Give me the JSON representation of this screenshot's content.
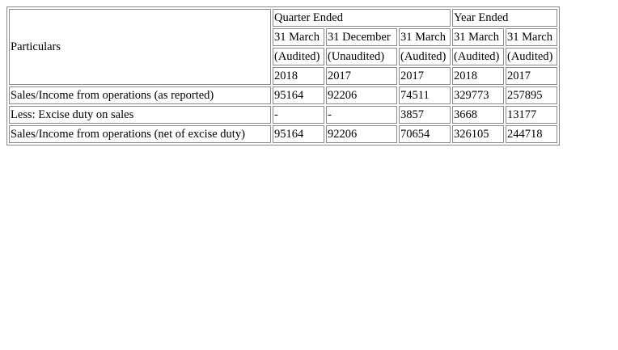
{
  "table": {
    "particulars_header": "Particulars",
    "group_headers": [
      "Quarter Ended",
      "Year Ended"
    ],
    "period_dates": [
      "31 March",
      "31 December",
      "31 March",
      "31 March",
      "31 March"
    ],
    "audit_status": [
      "(Audited)",
      "(Unaudited)",
      "(Audited)",
      "(Audited)",
      "(Audited)"
    ],
    "years": [
      "2018",
      "2017",
      "2017",
      "2018",
      "2017"
    ],
    "rows": [
      {
        "label": "Sales/Income from operations (as reported)",
        "values": [
          "95164",
          "92206",
          "74511",
          "329773",
          "257895"
        ]
      },
      {
        "label": "Less: Excise duty on sales",
        "values": [
          "-",
          "-",
          "3857",
          "3668",
          "13177"
        ]
      },
      {
        "label": "Sales/Income from operations (net of excise duty)",
        "values": [
          "95164",
          "92206",
          "70654",
          "326105",
          "244718"
        ]
      }
    ]
  }
}
